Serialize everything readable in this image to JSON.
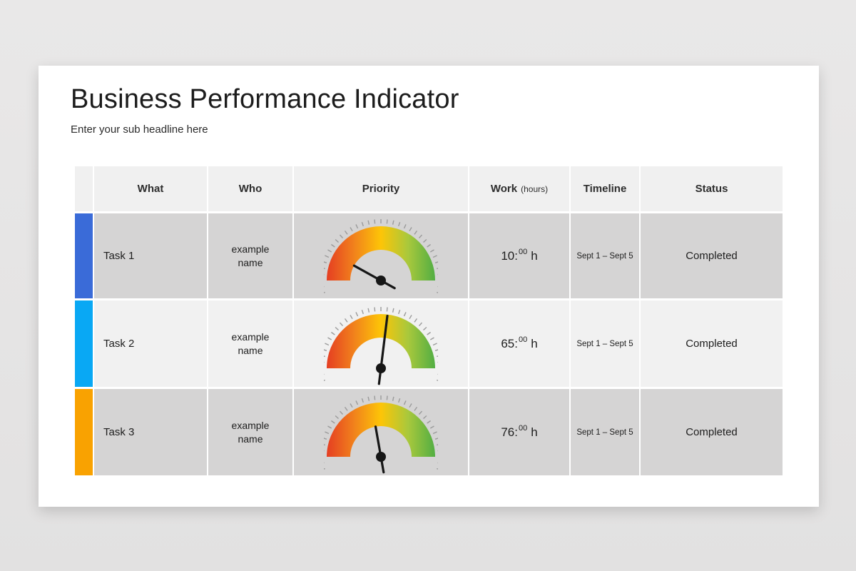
{
  "slide": {
    "title": "Business Performance Indicator",
    "subtitle": "Enter your sub headline here"
  },
  "table": {
    "header_bg": "#f0f0f0",
    "columns": [
      {
        "key": "color",
        "label": ""
      },
      {
        "key": "what",
        "label": "What"
      },
      {
        "key": "who",
        "label": "Who"
      },
      {
        "key": "priority",
        "label": "Priority"
      },
      {
        "key": "work",
        "label": "Work",
        "label_suffix": "(hours)"
      },
      {
        "key": "timeline",
        "label": "Timeline"
      },
      {
        "key": "status",
        "label": "Status"
      }
    ],
    "rows": [
      {
        "what": "Task 1",
        "who": "example name",
        "bar_color": "#3a6bd8",
        "row_bg": "#d5d4d4",
        "work": {
          "hours": "10",
          "minutes": "00",
          "unit": "h"
        },
        "timeline": "Sept 1 – Sept 5",
        "status": "Completed",
        "gauge": {
          "needle_angle_deg": 151,
          "needle_length": 43,
          "tail_length": 22
        }
      },
      {
        "what": "Task 2",
        "who": "example name",
        "bar_color": "#09a8f4",
        "row_bg": "#f1f1f1",
        "work": {
          "hours": "65",
          "minutes": "00",
          "unit": "h"
        },
        "timeline": "Sept 1 – Sept 5",
        "status": "Completed",
        "gauge": {
          "needle_angle_deg": 83,
          "needle_length": 74,
          "tail_length": 22
        }
      },
      {
        "what": "Task 3",
        "who": "example name",
        "bar_color": "#f9a201",
        "row_bg": "#d5d4d4",
        "work": {
          "hours": "76",
          "minutes": "00",
          "unit": "h"
        },
        "timeline": "Sept 1 – Sept 5",
        "status": "Completed",
        "gauge": {
          "needle_angle_deg": 100,
          "needle_length": 43,
          "tail_length": 22
        }
      }
    ],
    "gauge_style": {
      "gradient_colors": [
        "#e53e22",
        "#f1811c",
        "#fdc507",
        "#a9c83c",
        "#52ae43"
      ],
      "tick_color": "#9b9b9b",
      "needle_color": "#161616"
    }
  }
}
